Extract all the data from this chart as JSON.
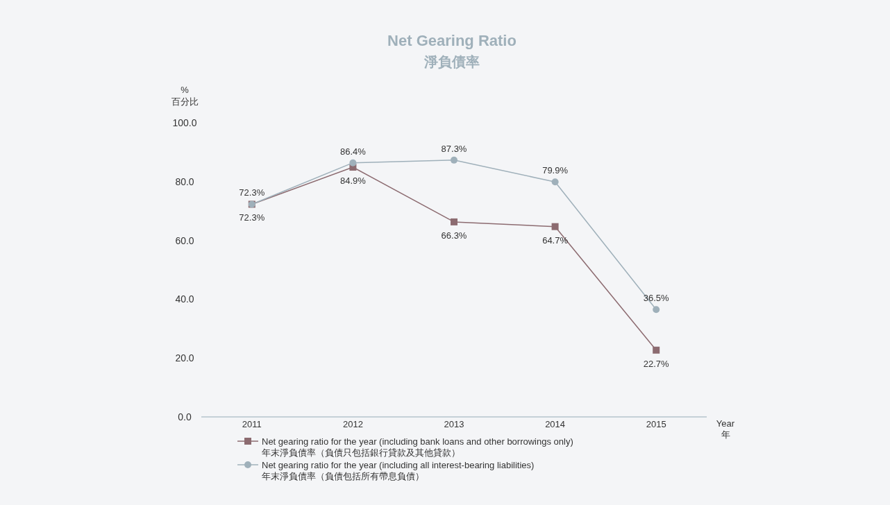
{
  "chart_data": {
    "type": "line",
    "title": "Net Gearing Ratio",
    "subtitle": "淨負債率",
    "ylabel": "%\n百分比",
    "xlabel": "Year\n年",
    "categories": [
      "2011",
      "2012",
      "2013",
      "2014",
      "2015"
    ],
    "series": [
      {
        "name": "Net gearing ratio for the year (including bank loans and other borrowings only)\n年末淨負債率（負債只包括銀行貸款及其他貸款）",
        "color": "#8c6b70",
        "marker": "square",
        "values": [
          72.3,
          84.9,
          66.3,
          64.7,
          22.7
        ],
        "value_labels": [
          "72.3%",
          "84.9%",
          "66.3%",
          "64.7%",
          "22.7%"
        ]
      },
      {
        "name": "Net gearing ratio for the year (including all interest-bearing liabilities)\n年末淨負債率（負債包括所有帶息負債）",
        "color": "#9fb0ba",
        "marker": "circle",
        "values": [
          72.3,
          86.4,
          87.3,
          79.9,
          36.5
        ],
        "value_labels": [
          "72.3%",
          "86.4%",
          "87.3%",
          "79.9%",
          "36.5%"
        ]
      }
    ],
    "ylim": [
      0,
      100
    ],
    "yticks": [
      {
        "value": 0,
        "label": "0.0"
      },
      {
        "value": 20,
        "label": "20.0"
      },
      {
        "value": 40,
        "label": "40.0"
      },
      {
        "value": 60,
        "label": "60.0"
      },
      {
        "value": 80,
        "label": "80.0"
      },
      {
        "value": 100,
        "label": "100.0"
      }
    ],
    "legend": "bottom"
  }
}
